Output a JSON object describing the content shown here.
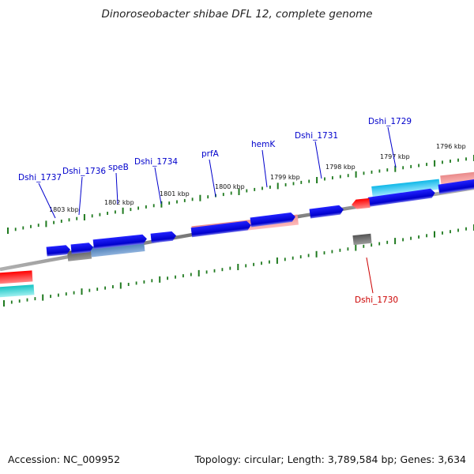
{
  "title": "Dinoroseobacter shibae DFL 12, complete genome",
  "footer": {
    "accession": "Accession: NC_009952",
    "summary": "Topology: circular; Length: 3,789,584 bp; Genes: 3,634"
  },
  "colors": {
    "backbone": "#8a8a8a",
    "tick": "#1f7a1f",
    "cds": "#0000dd",
    "gene_label": "#0000cc",
    "rrna_label": "#cc0000"
  },
  "scale_labels": [
    "1803 kbp",
    "1802 kbp",
    "1801 kbp",
    "1800 kbp",
    "1799 kbp",
    "1798 kbp",
    "1797 kbp",
    "1796 kbp"
  ],
  "gene_labels": [
    {
      "text": "Dshi_1737",
      "strand": "plus"
    },
    {
      "text": "Dshi_1736",
      "strand": "plus"
    },
    {
      "text": "speB",
      "strand": "plus"
    },
    {
      "text": "Dshi_1734",
      "strand": "plus"
    },
    {
      "text": "prfA",
      "strand": "plus"
    },
    {
      "text": "hemK",
      "strand": "plus"
    },
    {
      "text": "Dshi_1731",
      "strand": "plus"
    },
    {
      "text": "Dshi_1729",
      "strand": "plus"
    },
    {
      "text": "Dshi_1730",
      "strand": "minus"
    }
  ]
}
